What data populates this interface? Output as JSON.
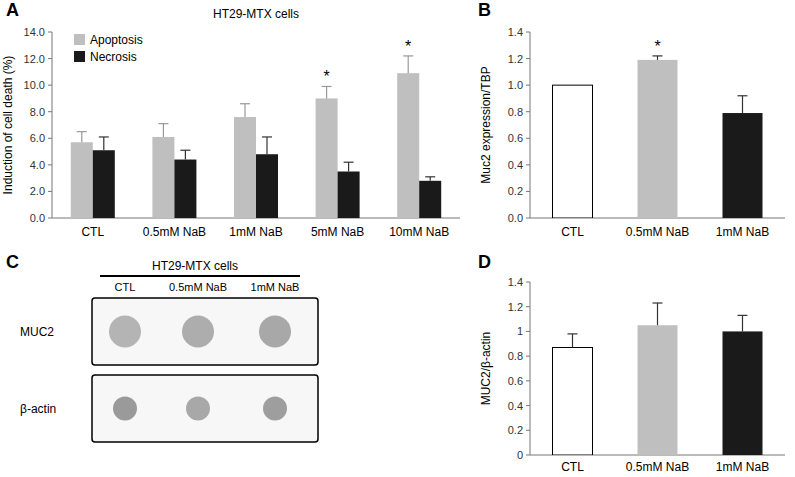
{
  "chart_data": [
    {
      "type": "bar",
      "panel": "A",
      "title": "HT29-MTX cells",
      "y_label": "Induction of cell death (%)",
      "categories": [
        "CTL",
        "0.5mM NaB",
        "1mM NaB",
        "5mM NaB",
        "10mM NaB"
      ],
      "series": [
        {
          "name": "Apoptosis",
          "color": "#bfbfbf",
          "values": [
            5.7,
            6.1,
            7.6,
            9.0,
            10.9
          ],
          "errors": [
            0.8,
            1.0,
            1.0,
            0.9,
            1.3
          ],
          "significance": [
            null,
            null,
            null,
            "*",
            "*"
          ]
        },
        {
          "name": "Necrosis",
          "color": "#1a1a1a",
          "values": [
            5.1,
            4.4,
            4.8,
            3.5,
            2.8
          ],
          "errors": [
            1.0,
            0.7,
            1.3,
            0.7,
            0.3
          ]
        }
      ],
      "ylim": [
        0,
        14
      ],
      "yticks": [
        {
          "value": 0,
          "label": "0.0"
        },
        {
          "value": 2,
          "label": "2.0"
        },
        {
          "value": 4,
          "label": "4.0"
        },
        {
          "value": 6,
          "label": "6.0"
        },
        {
          "value": 8,
          "label": "8.0"
        },
        {
          "value": 10,
          "label": "10.0"
        },
        {
          "value": 12,
          "label": "12.0"
        },
        {
          "value": 14,
          "label": "14.0"
        }
      ],
      "legend": "upper-left"
    },
    {
      "type": "bar",
      "panel": "B",
      "y_label": "Muc2 expression/TBP",
      "categories": [
        "CTL",
        "0.5mM NaB",
        "1mM NaB"
      ],
      "values": [
        1.0,
        1.19,
        0.79
      ],
      "errors": [
        null,
        0.03,
        0.13
      ],
      "significance": [
        null,
        "*",
        null
      ],
      "colors": [
        "#ffffff",
        "#bfbfbf",
        "#1a1a1a"
      ],
      "ylim": [
        0,
        1.4
      ],
      "yticks": [
        {
          "value": 0,
          "label": "0.0"
        },
        {
          "value": 0.2,
          "label": "0.2"
        },
        {
          "value": 0.4,
          "label": "0.4"
        },
        {
          "value": 0.6,
          "label": "0.6"
        },
        {
          "value": 0.8,
          "label": "0.8"
        },
        {
          "value": 1,
          "label": "1.0"
        },
        {
          "value": 1.2,
          "label": "1.2"
        },
        {
          "value": 1.4,
          "label": "1.4"
        }
      ]
    },
    {
      "type": "bar",
      "panel": "D",
      "y_label": "MUC2/β-actin",
      "categories": [
        "CTL",
        "0.5mM NaB",
        "1mM NaB"
      ],
      "values": [
        0.87,
        1.05,
        1.0
      ],
      "errors": [
        0.11,
        0.18,
        0.13
      ],
      "colors": [
        "#ffffff",
        "#bfbfbf",
        "#1a1a1a"
      ],
      "ylim": [
        0,
        1.4
      ],
      "yticks": [
        0,
        0.2,
        0.4,
        0.6,
        0.8,
        1,
        1.2,
        1.4
      ]
    }
  ],
  "blot": {
    "panel": "C",
    "title": "HT29-MTX cells",
    "lanes": [
      "CTL",
      "0.5mM NaB",
      "1mM NaB"
    ],
    "rows": [
      "MUC2",
      "β-actin"
    ]
  }
}
